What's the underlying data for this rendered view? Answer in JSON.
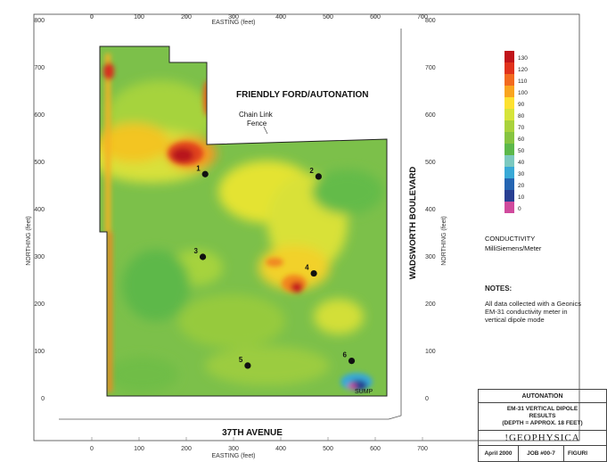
{
  "map": {
    "easting_axis_title": "EASTING (feet)",
    "northing_axis_title": "NORTHING (feet)",
    "easting_ticks": [
      "0",
      "100",
      "200",
      "300",
      "400",
      "500",
      "600",
      "700"
    ],
    "northing_ticks": [
      "0",
      "100",
      "200",
      "300",
      "400",
      "500",
      "600",
      "700",
      "800"
    ],
    "site_title": "FRIENDLY FORD/AUTONATION",
    "fence_label_line1": "Chain Link",
    "fence_label_line2": "Fence",
    "road_east": "WADSWORTH BOULEVARD",
    "road_south": "37TH AVENUE",
    "sump_label": "SUMP",
    "points": [
      {
        "label": "1",
        "easting": 240,
        "northing": 475
      },
      {
        "label": "2",
        "easting": 480,
        "northing": 470
      },
      {
        "label": "3",
        "easting": 235,
        "northing": 300
      },
      {
        "label": "4",
        "easting": 470,
        "northing": 265
      },
      {
        "label": "5",
        "easting": 330,
        "northing": 70
      },
      {
        "label": "6",
        "easting": 550,
        "northing": 80
      }
    ]
  },
  "legend": {
    "title": "CONDUCTIVITY",
    "unit": "MilliSiemens/Meter",
    "levels": [
      {
        "value": "130",
        "color": "#c0141a"
      },
      {
        "value": "120",
        "color": "#e0321c"
      },
      {
        "value": "110",
        "color": "#f26a1f"
      },
      {
        "value": "100",
        "color": "#f9a51f"
      },
      {
        "value": "90",
        "color": "#fde130"
      },
      {
        "value": "80",
        "color": "#d6e43a"
      },
      {
        "value": "70",
        "color": "#a9d23c"
      },
      {
        "value": "60",
        "color": "#86c440"
      },
      {
        "value": "50",
        "color": "#5cb84a"
      },
      {
        "value": "40",
        "color": "#7cc9bf"
      },
      {
        "value": "30",
        "color": "#39a9d6"
      },
      {
        "value": "20",
        "color": "#2565b2"
      },
      {
        "value": "10",
        "color": "#283f92"
      },
      {
        "value": "0",
        "color": "#d04a9d"
      }
    ]
  },
  "notes": {
    "heading": "NOTES:",
    "line1": "All data collected with a Geonics",
    "line2": "EM-31 conductivity meter in",
    "line3": "vertical dipole mode"
  },
  "title_block": {
    "client": "AUTONATION",
    "title_line1": "EM-31 VERTICAL DIPOLE",
    "title_line2": "RESULTS",
    "title_line3": "(DEPTH = APPROX. 18 FEET)",
    "company": "!GEOPHYSICA",
    "date": "April 2000",
    "job": "JOB #00-7",
    "figure": "FIGURI"
  }
}
